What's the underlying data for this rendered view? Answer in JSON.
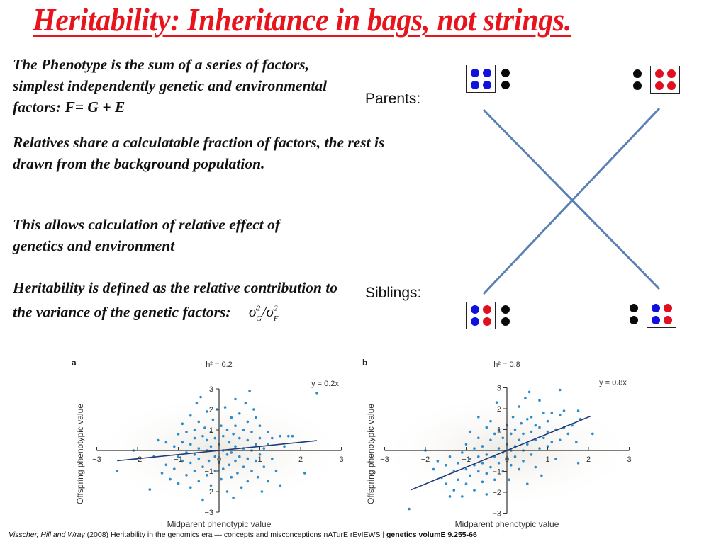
{
  "title": "Heritability: Inheritance in bags, not strings.",
  "paragraphs": {
    "p1": "The Phenotype is the sum of a series of factors, simplest independently genetic and environmental factors: F= G + E",
    "p2": "Relatives share a calculatable fraction of factors, the rest is drawn from the background population.",
    "p3": "This allows calculation of relative effect of genetics and environment",
    "p4": "Heritability is defined as the relative contribution to the variance of the genetic factors:"
  },
  "formula": {
    "sigma": "σ",
    "sup": "2",
    "sub_g": "G",
    "sub_f": "F",
    "slash": "/"
  },
  "diagram": {
    "parents_label": "Parents:",
    "siblings_label": "Siblings:",
    "colors": {
      "blue": "#1010e0",
      "red": "#e01020",
      "black": "#0a0a0a",
      "line": "#5b80b3"
    },
    "parent_left": {
      "bag": [
        "blue",
        "blue",
        "blue",
        "blue"
      ],
      "outside": [
        "black",
        "black"
      ]
    },
    "parent_right": {
      "bag": [
        "red",
        "red",
        "red",
        "red"
      ],
      "outside": [
        "black",
        "black"
      ]
    },
    "sibling_left": {
      "bag": [
        "blue",
        "red",
        "blue",
        "red"
      ],
      "outside": [
        "black",
        "black"
      ]
    },
    "sibling_right": {
      "bag": [
        "blue",
        "red",
        "blue",
        "red"
      ],
      "outside": [
        "black",
        "black"
      ]
    }
  },
  "chart_data": [
    {
      "type": "scatter",
      "panel": "a",
      "title": "h² = 0.2",
      "equation": "y = 0.2x",
      "slope": 0.2,
      "fit_x_range": [
        -2.5,
        2.4
      ],
      "xlabel": "Midparent phenotypic value",
      "ylabel": "Offspring phenotypic value",
      "xlim": [
        -3,
        3
      ],
      "ylim": [
        -3,
        3
      ],
      "xticks": [
        "−3",
        "−2",
        "−1",
        "0",
        "1",
        "2",
        "3"
      ],
      "yticks": [
        "3",
        "2",
        "1",
        "−1",
        "−2",
        "−3"
      ],
      "point_color": "#2a8ccc",
      "line_color": "#1f3b78",
      "points": [
        [
          -2.5,
          -1.0
        ],
        [
          -2.1,
          0.0
        ],
        [
          -1.6,
          -0.3
        ],
        [
          -1.7,
          -1.9
        ],
        [
          -1.5,
          0.5
        ],
        [
          -1.4,
          -1.1
        ],
        [
          -1.3,
          -0.7
        ],
        [
          -1.3,
          0.4
        ],
        [
          -1.2,
          -1.4
        ],
        [
          -1.1,
          0.2
        ],
        [
          -1.1,
          -0.9
        ],
        [
          -1.0,
          0.8
        ],
        [
          -1.0,
          -0.3
        ],
        [
          -1.0,
          -1.6
        ],
        [
          -0.9,
          1.3
        ],
        [
          -0.9,
          -0.5
        ],
        [
          -0.9,
          0.4
        ],
        [
          -0.8,
          -1.2
        ],
        [
          -0.8,
          0.9
        ],
        [
          -0.8,
          -0.1
        ],
        [
          -0.7,
          1.7
        ],
        [
          -0.7,
          -0.6
        ],
        [
          -0.7,
          0.3
        ],
        [
          -0.7,
          -1.8
        ],
        [
          -0.6,
          1.0
        ],
        [
          -0.6,
          -0.2
        ],
        [
          -0.6,
          -1.0
        ],
        [
          -0.6,
          0.6
        ],
        [
          -0.55,
          2.3
        ],
        [
          -0.5,
          -0.4
        ],
        [
          -0.5,
          1.4
        ],
        [
          -0.5,
          -1.5
        ],
        [
          -0.5,
          0.1
        ],
        [
          -0.45,
          2.6
        ],
        [
          -0.4,
          0.7
        ],
        [
          -0.4,
          -0.8
        ],
        [
          -0.4,
          -2.4
        ],
        [
          -0.35,
          1.1
        ],
        [
          -0.3,
          0.0
        ],
        [
          -0.3,
          -1.2
        ],
        [
          -0.3,
          0.5
        ],
        [
          -0.3,
          1.9
        ],
        [
          -0.25,
          -0.5
        ],
        [
          -0.2,
          0.9
        ],
        [
          -0.2,
          -1.7
        ],
        [
          -0.2,
          0.2
        ],
        [
          -0.15,
          1.5
        ],
        [
          -0.1,
          -0.3
        ],
        [
          -0.1,
          -1.0
        ],
        [
          -0.1,
          0.6
        ],
        [
          -0.05,
          2.0
        ],
        [
          0.0,
          -0.6
        ],
        [
          0.0,
          0.3
        ],
        [
          0.05,
          -1.4
        ],
        [
          0.05,
          1.2
        ],
        [
          0.1,
          0.0
        ],
        [
          0.1,
          -0.9
        ],
        [
          0.1,
          0.7
        ],
        [
          0.15,
          2.1
        ],
        [
          0.2,
          -0.2
        ],
        [
          0.2,
          -2.0
        ],
        [
          0.2,
          1.0
        ],
        [
          0.25,
          -0.7
        ],
        [
          0.25,
          0.4
        ],
        [
          0.3,
          -1.3
        ],
        [
          0.3,
          1.6
        ],
        [
          0.3,
          -0.1
        ],
        [
          0.35,
          -2.3
        ],
        [
          0.35,
          0.8
        ],
        [
          0.4,
          -0.5
        ],
        [
          0.4,
          0.2
        ],
        [
          0.4,
          1.2
        ],
        [
          0.4,
          2.5
        ],
        [
          0.45,
          -1.1
        ],
        [
          0.5,
          0.6
        ],
        [
          0.5,
          -0.3
        ],
        [
          0.5,
          1.8
        ],
        [
          0.55,
          -1.8
        ],
        [
          0.6,
          0.1
        ],
        [
          0.6,
          -0.8
        ],
        [
          0.6,
          1.0
        ],
        [
          0.65,
          2.3
        ],
        [
          0.7,
          -0.4
        ],
        [
          0.7,
          0.5
        ],
        [
          0.7,
          -1.5
        ],
        [
          0.7,
          1.4
        ],
        [
          0.75,
          2.9
        ],
        [
          0.8,
          0.0
        ],
        [
          0.8,
          -1.0
        ],
        [
          0.8,
          0.9
        ],
        [
          0.85,
          2.0
        ],
        [
          0.9,
          -0.5
        ],
        [
          0.9,
          0.3
        ],
        [
          0.9,
          1.6
        ],
        [
          0.95,
          -1.3
        ],
        [
          1.0,
          0.6
        ],
        [
          1.0,
          -0.2
        ],
        [
          1.0,
          1.2
        ],
        [
          1.05,
          -2.0
        ],
        [
          1.1,
          0.1
        ],
        [
          1.1,
          -0.8
        ],
        [
          1.2,
          0.9
        ],
        [
          1.2,
          -1.5
        ],
        [
          1.2,
          0.3
        ],
        [
          1.3,
          -0.4
        ],
        [
          1.3,
          0.6
        ],
        [
          1.4,
          -1.0
        ],
        [
          1.5,
          0.7
        ],
        [
          1.5,
          -1.7
        ],
        [
          1.6,
          0.2
        ],
        [
          1.7,
          0.7
        ],
        [
          1.8,
          0.7
        ],
        [
          2.1,
          -1.1
        ],
        [
          2.4,
          2.8
        ]
      ]
    },
    {
      "type": "scatter",
      "panel": "b",
      "title": "h² = 0.8",
      "equation": "y = 0.8x",
      "slope": 0.8,
      "fit_x_range": [
        -2.35,
        2.05
      ],
      "xlabel": "Midparent phenotypic value",
      "ylabel": "Offspring phenotypic value",
      "xlim": [
        -3,
        3
      ],
      "ylim": [
        -3,
        3
      ],
      "xticks": [
        "−3",
        "−2",
        "−1",
        "0",
        "1",
        "2",
        "3"
      ],
      "yticks": [
        "3",
        "2",
        "1",
        "−1",
        "−2",
        "−3"
      ],
      "point_color": "#2a8ccc",
      "line_color": "#1f3b78",
      "points": [
        [
          -2.4,
          -2.8
        ],
        [
          -2.0,
          0.0
        ],
        [
          -1.8,
          -0.9
        ],
        [
          -1.7,
          -0.5
        ],
        [
          -1.6,
          -1.3
        ],
        [
          -1.5,
          -0.7
        ],
        [
          -1.5,
          -1.6
        ],
        [
          -1.4,
          -2.2
        ],
        [
          -1.4,
          -0.3
        ],
        [
          -1.3,
          -1.0
        ],
        [
          -1.3,
          -1.9
        ],
        [
          -1.2,
          -0.6
        ],
        [
          -1.2,
          -1.4
        ],
        [
          -1.1,
          -0.1
        ],
        [
          -1.1,
          -2.2
        ],
        [
          -1.0,
          -0.9
        ],
        [
          -1.0,
          -1.6
        ],
        [
          -1.0,
          0.3
        ],
        [
          -0.9,
          -0.4
        ],
        [
          -0.9,
          -1.2
        ],
        [
          -0.9,
          0.9
        ],
        [
          -0.8,
          -0.7
        ],
        [
          -0.8,
          -1.9
        ],
        [
          -0.8,
          0.1
        ],
        [
          -0.7,
          -1.0
        ],
        [
          -0.7,
          0.6
        ],
        [
          -0.7,
          -0.3
        ],
        [
          -0.7,
          1.6
        ],
        [
          -0.6,
          -1.5
        ],
        [
          -0.6,
          0.2
        ],
        [
          -0.6,
          -0.6
        ],
        [
          -0.5,
          1.1
        ],
        [
          -0.5,
          -1.1
        ],
        [
          -0.5,
          -0.2
        ],
        [
          -0.5,
          -2.1
        ],
        [
          -0.4,
          0.5
        ],
        [
          -0.4,
          -0.8
        ],
        [
          -0.4,
          1.4
        ],
        [
          -0.3,
          -0.3
        ],
        [
          -0.3,
          0.8
        ],
        [
          -0.3,
          -1.4
        ],
        [
          -0.25,
          2.3
        ],
        [
          -0.2,
          0.1
        ],
        [
          -0.2,
          -0.6
        ],
        [
          -0.2,
          1.0
        ],
        [
          -0.1,
          -0.1
        ],
        [
          -0.1,
          0.6
        ],
        [
          -0.1,
          -1.0
        ],
        [
          0.0,
          0.3
        ],
        [
          0.0,
          -0.4
        ],
        [
          0.0,
          1.2
        ],
        [
          0.05,
          -1.4
        ],
        [
          0.1,
          0.0
        ],
        [
          0.1,
          0.8
        ],
        [
          0.1,
          -0.7
        ],
        [
          0.15,
          1.6
        ],
        [
          0.2,
          0.2
        ],
        [
          0.2,
          -0.3
        ],
        [
          0.2,
          1.0
        ],
        [
          0.3,
          0.5
        ],
        [
          0.3,
          -0.9
        ],
        [
          0.3,
          2.1
        ],
        [
          0.35,
          1.3
        ],
        [
          0.4,
          0.0
        ],
        [
          0.4,
          0.8
        ],
        [
          0.4,
          -0.5
        ],
        [
          0.45,
          2.5
        ],
        [
          0.5,
          1.5
        ],
        [
          0.5,
          0.3
        ],
        [
          0.5,
          -1.6
        ],
        [
          0.55,
          2.8
        ],
        [
          0.6,
          0.9
        ],
        [
          0.6,
          -0.2
        ],
        [
          0.6,
          1.6
        ],
        [
          0.7,
          0.5
        ],
        [
          0.7,
          1.2
        ],
        [
          0.7,
          -0.8
        ],
        [
          0.8,
          0.1
        ],
        [
          0.8,
          1.1
        ],
        [
          0.8,
          2.4
        ],
        [
          0.85,
          -1.2
        ],
        [
          0.9,
          0.6
        ],
        [
          0.9,
          1.8
        ],
        [
          1.0,
          0.9
        ],
        [
          1.0,
          0.2
        ],
        [
          1.0,
          1.4
        ],
        [
          1.1,
          1.8
        ],
        [
          1.1,
          0.4
        ],
        [
          1.2,
          1.0
        ],
        [
          1.2,
          -0.4
        ],
        [
          1.3,
          0.5
        ],
        [
          1.3,
          1.7
        ],
        [
          1.3,
          2.9
        ],
        [
          1.4,
          1.1
        ],
        [
          1.4,
          1.9
        ],
        [
          1.5,
          0.8
        ],
        [
          1.6,
          1.2
        ],
        [
          1.7,
          0.4
        ],
        [
          1.75,
          1.9
        ],
        [
          1.75,
          -0.6
        ],
        [
          1.8,
          1.5
        ],
        [
          2.1,
          0.8
        ]
      ]
    }
  ],
  "citation": {
    "authors": "Visscher,  Hill and Wray",
    "year": " (2008) ",
    "text": "Heritability in the genomics era — concepts and misconceptions  nATurE rEvIEWS | ",
    "journal": "genetics volumE 9.255-66"
  }
}
